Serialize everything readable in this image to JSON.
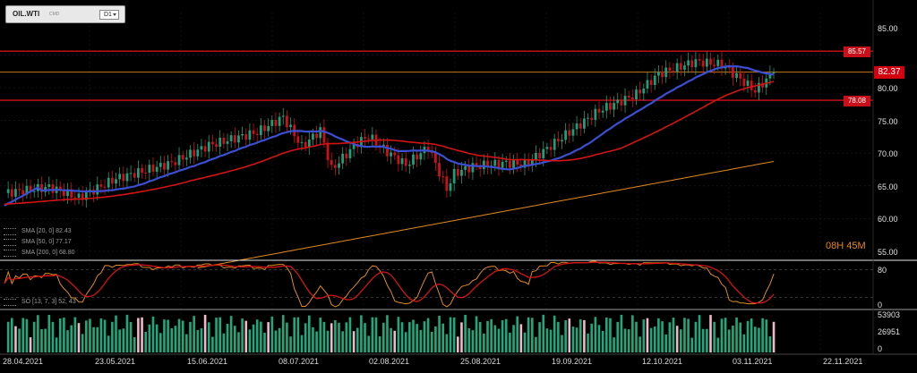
{
  "symbol": {
    "name": "OIL.WTI",
    "type": "CMD",
    "timeframe": "D1"
  },
  "y_axis": {
    "ticks": [
      "85.00",
      "80.00",
      "75.00",
      "70.00",
      "65.00",
      "60.00",
      "55.00"
    ]
  },
  "price_tags": {
    "upper": "85.57",
    "current": "82.37",
    "lower": "78.08"
  },
  "countdown": "08H 45M",
  "indicators": [
    {
      "label": "SMA [20, 0] 82.43",
      "color": "#3b4fd4"
    },
    {
      "label": "SMA [50, 0] 77.17",
      "color": "#d41414"
    },
    {
      "label": "SMA [200, 0] 68.80",
      "color": "#e08a1e"
    }
  ],
  "stochastic": {
    "label": "SO [13, 7, 3] 52, 43",
    "ticks": [
      "80",
      "0"
    ]
  },
  "volume": {
    "ticks": [
      "53903",
      "26951",
      "0"
    ]
  },
  "x_axis": {
    "labels": [
      "28.04.2021",
      "23.05.2021",
      "15.06.2021",
      "08.07.2021",
      "02.08.2021",
      "25.08.2021",
      "19.09.2021",
      "12.10.2021",
      "03.11.2021",
      "22.11.2021"
    ]
  },
  "colors": {
    "up": "#1f9e77",
    "down": "#d01018",
    "sma20": "#3b4fd4",
    "sma50": "#d41414",
    "sma200": "#e08a1e",
    "level_red": "#d01018",
    "level_orange": "#c8781a",
    "vol_up": "#1fa87e",
    "vol_down": "#f0b8c8"
  },
  "chart_data": {
    "type": "candlestick",
    "title": "",
    "horizontal_levels": [
      85.57,
      82.37,
      78.08
    ],
    "x": [
      "28.04.2021",
      "23.05.2021",
      "15.06.2021",
      "08.07.2021",
      "02.08.2021",
      "25.08.2021",
      "19.09.2021",
      "12.10.2021",
      "03.11.2021"
    ],
    "close": [
      63.9,
      66.1,
      71.6,
      73.0,
      70.9,
      68.5,
      73.3,
      81.4,
      82.37
    ],
    "series": [
      {
        "name": "SMA [20, 0]",
        "last": 82.43
      },
      {
        "name": "SMA [50, 0]",
        "last": 77.17
      },
      {
        "name": "SMA [200, 0]",
        "last": 68.8
      }
    ],
    "ylim": [
      53,
      88
    ]
  }
}
